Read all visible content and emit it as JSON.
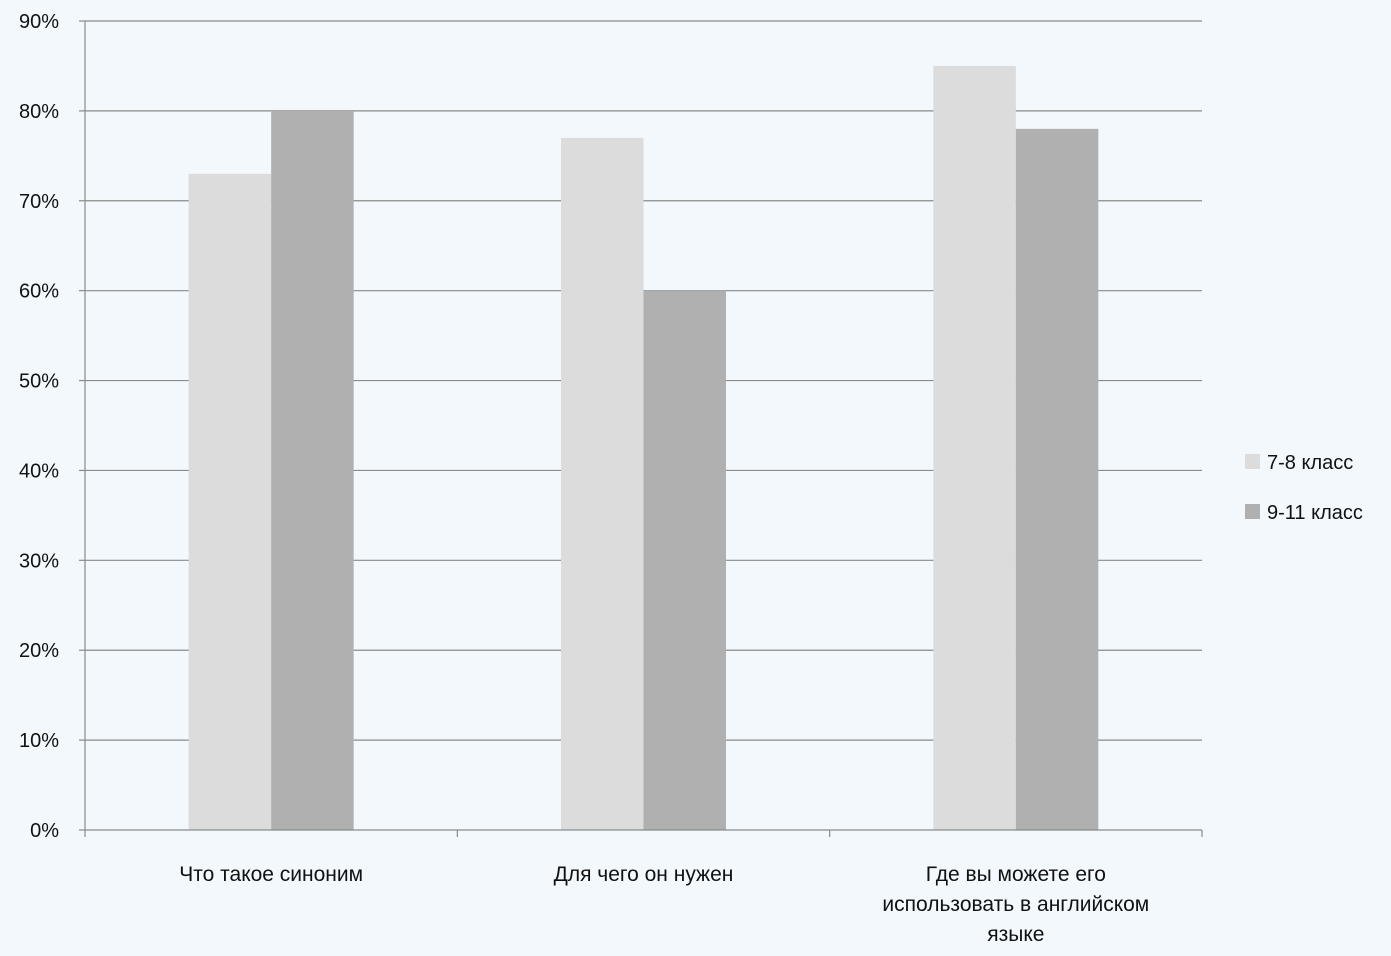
{
  "chart_data": {
    "type": "bar",
    "categories": [
      [
        "Что такое синоним"
      ],
      [
        "Для чего он нужен"
      ],
      [
        "Где вы можете его",
        "использовать в английском",
        "языке"
      ]
    ],
    "series": [
      {
        "name": "7-8 класс",
        "values": [
          73,
          77,
          85
        ],
        "color": "#dcdcdc"
      },
      {
        "name": "9-11 класс",
        "values": [
          80,
          60,
          78
        ],
        "color": "#b0b0b0"
      }
    ],
    "y_ticks": [
      "0%",
      "10%",
      "20%",
      "30%",
      "40%",
      "50%",
      "60%",
      "70%",
      "80%",
      "90%"
    ],
    "ylim": [
      0,
      90
    ],
    "y_unit": "%",
    "grid": true,
    "legend_position": "right",
    "colors": {
      "background": "#f2f8fc",
      "gridline": "#8a8a8a",
      "axis": "#8a8a8a",
      "text": "#111111"
    }
  }
}
